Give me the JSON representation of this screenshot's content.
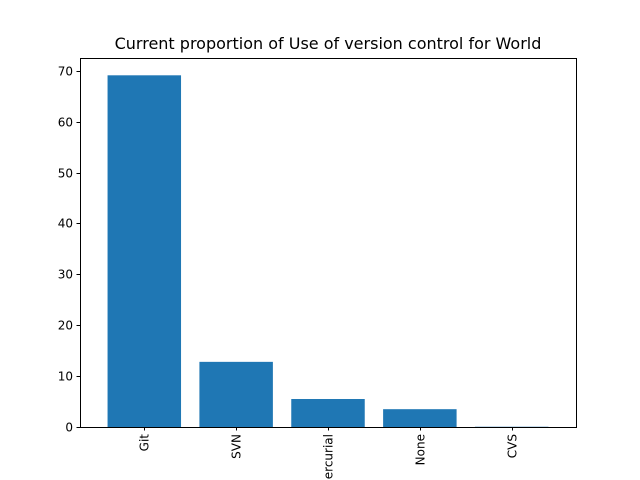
{
  "chart_data": {
    "type": "bar",
    "title": "Current proportion of Use of version control for World",
    "xlabel": "",
    "ylabel": "",
    "categories": [
      "Git",
      "SVN",
      "Mercurial",
      "None",
      "CVS"
    ],
    "values": [
      69.1,
      12.8,
      5.5,
      3.5,
      0.05
    ],
    "ylim": [
      0,
      72.5
    ],
    "yticks": [
      0,
      10,
      20,
      30,
      40,
      50,
      60,
      70
    ],
    "bar_color": "#1f77b4",
    "grid": false,
    "xtick_rotation": "vertical"
  }
}
